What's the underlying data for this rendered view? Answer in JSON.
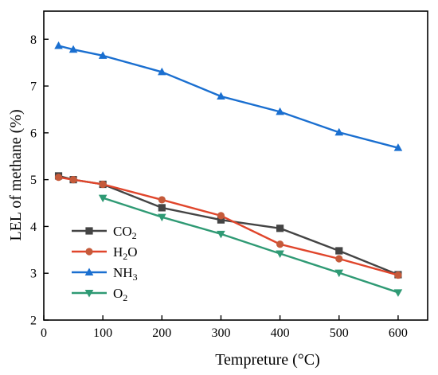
{
  "chart_data": {
    "type": "line",
    "xlabel": "Tempreture (°C)",
    "ylabel": "LEL of methane (%)",
    "xlim": [
      0,
      650
    ],
    "ylim": [
      2,
      8.6
    ],
    "x_ticks": [
      0,
      100,
      200,
      300,
      400,
      500,
      600
    ],
    "y_ticks": [
      2,
      3,
      4,
      5,
      6,
      7,
      8
    ],
    "legend_position": "lower-left",
    "series": [
      {
        "name": "CO2",
        "label_main": "CO",
        "label_sub": "2",
        "color": "#444444",
        "marker": "square",
        "x": [
          25,
          50,
          100,
          200,
          300,
          400,
          500,
          600
        ],
        "y": [
          5.08,
          5.0,
          4.9,
          4.4,
          4.14,
          3.96,
          3.48,
          2.97
        ]
      },
      {
        "name": "H2O",
        "label_main": "H",
        "label_sub": "2",
        "label_tail": "O",
        "color": "#e0452b",
        "marker_color": "#c55a3a",
        "marker": "circle",
        "x": [
          25,
          50,
          100,
          200,
          300,
          400,
          500,
          600
        ],
        "y": [
          5.05,
          5.0,
          4.9,
          4.57,
          4.23,
          3.62,
          3.31,
          2.96
        ]
      },
      {
        "name": "NH3",
        "label_main": "NH",
        "label_sub": "3",
        "color": "#1a6fd0",
        "marker": "triangle-up",
        "x": [
          25,
          50,
          100,
          200,
          300,
          400,
          500,
          600
        ],
        "y": [
          7.86,
          7.78,
          7.65,
          7.3,
          6.78,
          6.45,
          6.01,
          5.68
        ]
      },
      {
        "name": "O2",
        "label_main": "O",
        "label_sub": "2",
        "color": "#2f9a74",
        "marker": "triangle-down",
        "x": [
          100,
          200,
          300,
          400,
          500,
          600
        ],
        "y": [
          4.61,
          4.2,
          3.84,
          3.42,
          3.01,
          2.59
        ]
      }
    ]
  }
}
